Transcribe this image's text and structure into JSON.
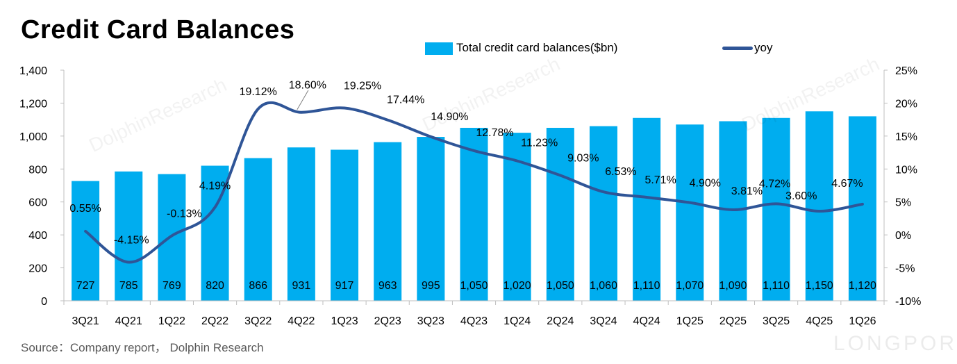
{
  "title": "Credit Card Balances",
  "source": "Source：Company report， Dolphin Research",
  "watermark_text": "DolphinResearch",
  "logo_text": "LONGPORT",
  "colors": {
    "bar": "#00ADEF",
    "line": "#2F5597"
  },
  "chart_data": {
    "type": "bar+line",
    "categories": [
      "3Q21",
      "4Q21",
      "1Q22",
      "2Q22",
      "3Q22",
      "4Q22",
      "1Q23",
      "2Q23",
      "3Q23",
      "4Q23",
      "1Q24",
      "2Q24",
      "3Q24",
      "4Q24",
      "1Q25",
      "2Q25",
      "3Q25",
      "4Q25",
      "1Q26"
    ],
    "series": [
      {
        "name": "Total credit card balances($bn)",
        "type": "bar",
        "axis": "left",
        "values": [
          727,
          785,
          769,
          820,
          866,
          931,
          917,
          963,
          995,
          1050,
          1020,
          1050,
          1060,
          1110,
          1070,
          1090,
          1110,
          1150,
          1120
        ],
        "labels": [
          "727",
          "785",
          "769",
          "820",
          "866",
          "931",
          "917",
          "963",
          "995",
          "1,050",
          "1,020",
          "1,050",
          "1,060",
          "1,110",
          "1,070",
          "1,090",
          "1,110",
          "1,150",
          "1,120"
        ]
      },
      {
        "name": "yoy",
        "type": "line",
        "axis": "right",
        "values": [
          0.55,
          -4.15,
          -0.13,
          4.19,
          19.12,
          18.6,
          19.25,
          17.44,
          14.9,
          12.78,
          11.23,
          9.03,
          6.53,
          5.71,
          4.9,
          3.81,
          4.72,
          3.6,
          4.67
        ],
        "labels": [
          "0.55%",
          "-4.15%",
          "-0.13%",
          "4.19%",
          "19.12%",
          "18.60%",
          "19.25%",
          "17.44%",
          "14.90%",
          "12.78%",
          "11.23%",
          "9.03%",
          "6.53%",
          "5.71%",
          "4.90%",
          "3.81%",
          "4.72%",
          "3.60%",
          "4.67%"
        ]
      }
    ],
    "y_left": {
      "min": 0,
      "max": 1400,
      "step": 200,
      "tick_labels": [
        "0",
        "200",
        "400",
        "600",
        "800",
        "1,000",
        "1,200",
        "1,400"
      ]
    },
    "y_right": {
      "min": -10,
      "max": 25,
      "step": 5,
      "tick_labels": [
        "-10%",
        "-5%",
        "0%",
        "5%",
        "10%",
        "15%",
        "20%",
        "25%"
      ]
    },
    "legend_position": "top",
    "grid": false
  }
}
